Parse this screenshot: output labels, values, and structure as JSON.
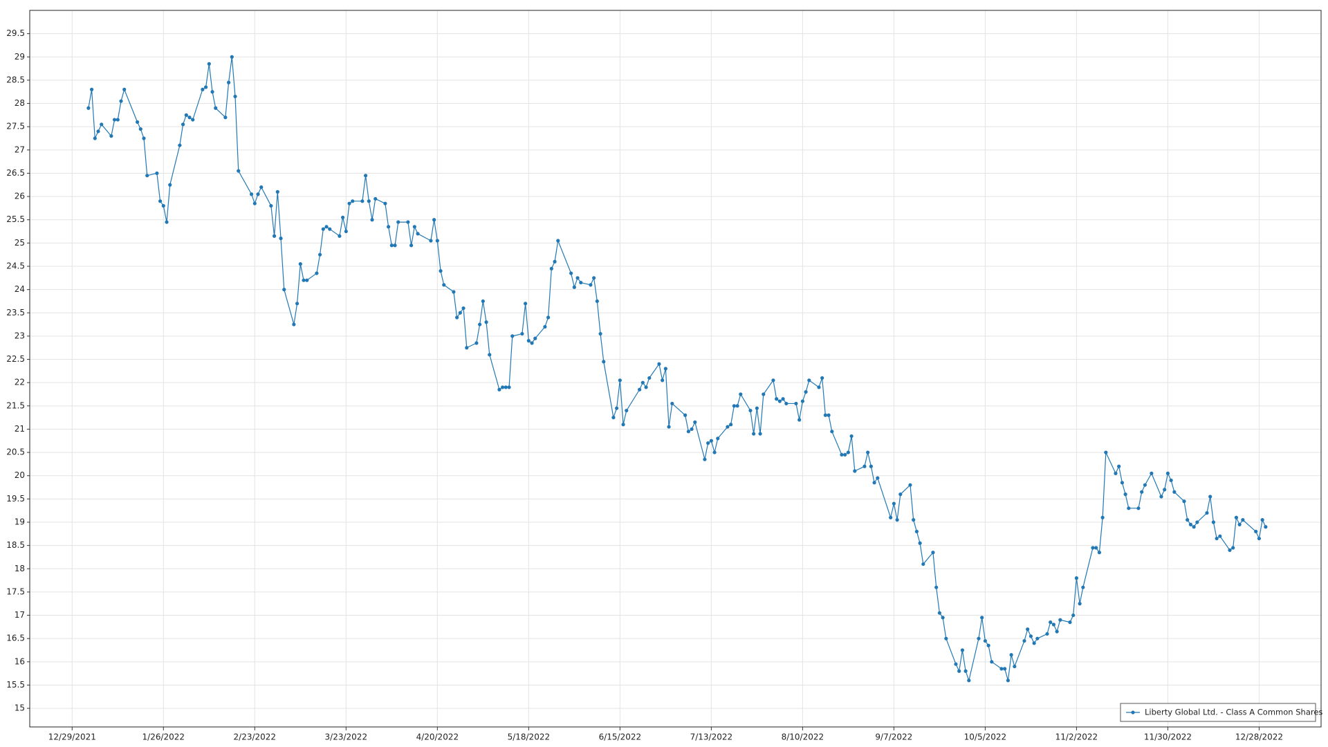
{
  "chart_data": {
    "type": "line",
    "x": [
      "1/3/2022",
      "1/4/2022",
      "1/5/2022",
      "1/6/2022",
      "1/7/2022",
      "1/10/2022",
      "1/11/2022",
      "1/12/2022",
      "1/13/2022",
      "1/14/2022",
      "1/18/2022",
      "1/19/2022",
      "1/20/2022",
      "1/21/2022",
      "1/24/2022",
      "1/25/2022",
      "1/26/2022",
      "1/27/2022",
      "1/28/2022",
      "1/31/2022",
      "2/1/2022",
      "2/2/2022",
      "2/3/2022",
      "2/4/2022",
      "2/7/2022",
      "2/8/2022",
      "2/9/2022",
      "2/10/2022",
      "2/11/2022",
      "2/14/2022",
      "2/15/2022",
      "2/16/2022",
      "2/17/2022",
      "2/18/2022",
      "2/22/2022",
      "2/23/2022",
      "2/24/2022",
      "2/25/2022",
      "2/28/2022",
      "3/1/2022",
      "3/2/2022",
      "3/3/2022",
      "3/4/2022",
      "3/7/2022",
      "3/8/2022",
      "3/9/2022",
      "3/10/2022",
      "3/11/2022",
      "3/14/2022",
      "3/15/2022",
      "3/16/2022",
      "3/17/2022",
      "3/18/2022",
      "3/21/2022",
      "3/22/2022",
      "3/23/2022",
      "3/24/2022",
      "3/25/2022",
      "3/28/2022",
      "3/29/2022",
      "3/30/2022",
      "3/31/2022",
      "4/1/2022",
      "4/4/2022",
      "4/5/2022",
      "4/6/2022",
      "4/7/2022",
      "4/8/2022",
      "4/11/2022",
      "4/12/2022",
      "4/13/2022",
      "4/14/2022",
      "4/18/2022",
      "4/19/2022",
      "4/20/2022",
      "4/21/2022",
      "4/22/2022",
      "4/25/2022",
      "4/26/2022",
      "4/27/2022",
      "4/28/2022",
      "4/29/2022",
      "5/2/2022",
      "5/3/2022",
      "5/4/2022",
      "5/5/2022",
      "5/6/2022",
      "5/9/2022",
      "5/10/2022",
      "5/11/2022",
      "5/12/2022",
      "5/13/2022",
      "5/16/2022",
      "5/17/2022",
      "5/18/2022",
      "5/19/2022",
      "5/20/2022",
      "5/23/2022",
      "5/24/2022",
      "5/25/2022",
      "5/26/2022",
      "5/27/2022",
      "5/31/2022",
      "6/1/2022",
      "6/2/2022",
      "6/3/2022",
      "6/6/2022",
      "6/7/2022",
      "6/8/2022",
      "6/9/2022",
      "6/10/2022",
      "6/13/2022",
      "6/14/2022",
      "6/15/2022",
      "6/16/2022",
      "6/17/2022",
      "6/21/2022",
      "6/22/2022",
      "6/23/2022",
      "6/24/2022",
      "6/27/2022",
      "6/28/2022",
      "6/29/2022",
      "6/30/2022",
      "7/1/2022",
      "7/5/2022",
      "7/6/2022",
      "7/7/2022",
      "7/8/2022",
      "7/11/2022",
      "7/12/2022",
      "7/13/2022",
      "7/14/2022",
      "7/15/2022",
      "7/18/2022",
      "7/19/2022",
      "7/20/2022",
      "7/21/2022",
      "7/22/2022",
      "7/25/2022",
      "7/26/2022",
      "7/27/2022",
      "7/28/2022",
      "7/29/2022",
      "8/1/2022",
      "8/2/2022",
      "8/3/2022",
      "8/4/2022",
      "8/5/2022",
      "8/8/2022",
      "8/9/2022",
      "8/10/2022",
      "8/11/2022",
      "8/12/2022",
      "8/15/2022",
      "8/16/2022",
      "8/17/2022",
      "8/18/2022",
      "8/19/2022",
      "8/22/2022",
      "8/23/2022",
      "8/24/2022",
      "8/25/2022",
      "8/26/2022",
      "8/29/2022",
      "8/30/2022",
      "8/31/2022",
      "9/1/2022",
      "9/2/2022",
      "9/6/2022",
      "9/7/2022",
      "9/8/2022",
      "9/9/2022",
      "9/12/2022",
      "9/13/2022",
      "9/14/2022",
      "9/15/2022",
      "9/16/2022",
      "9/19/2022",
      "9/20/2022",
      "9/21/2022",
      "9/22/2022",
      "9/23/2022",
      "9/26/2022",
      "9/27/2022",
      "9/28/2022",
      "9/29/2022",
      "9/30/2022",
      "10/3/2022",
      "10/4/2022",
      "10/5/2022",
      "10/6/2022",
      "10/7/2022",
      "10/10/2022",
      "10/11/2022",
      "10/12/2022",
      "10/13/2022",
      "10/14/2022",
      "10/17/2022",
      "10/18/2022",
      "10/19/2022",
      "10/20/2022",
      "10/21/2022",
      "10/24/2022",
      "10/25/2022",
      "10/26/2022",
      "10/27/2022",
      "10/28/2022",
      "10/31/2022",
      "11/1/2022",
      "11/2/2022",
      "11/3/2022",
      "11/4/2022",
      "11/7/2022",
      "11/8/2022",
      "11/9/2022",
      "11/10/2022",
      "11/11/2022",
      "11/14/2022",
      "11/15/2022",
      "11/16/2022",
      "11/17/2022",
      "11/18/2022",
      "11/21/2022",
      "11/22/2022",
      "11/23/2022",
      "11/25/2022",
      "11/28/2022",
      "11/29/2022",
      "11/30/2022",
      "12/1/2022",
      "12/2/2022",
      "12/5/2022",
      "12/6/2022",
      "12/7/2022",
      "12/8/2022",
      "12/9/2022",
      "12/12/2022",
      "12/13/2022",
      "12/14/2022",
      "12/15/2022",
      "12/16/2022",
      "12/19/2022",
      "12/20/2022",
      "12/21/2022",
      "12/22/2022",
      "12/23/2022",
      "12/27/2022",
      "12/28/2022",
      "12/29/2022",
      "12/30/2022"
    ],
    "series": [
      {
        "name": "Liberty Global Ltd. - Class A Common Shares",
        "color": "#2178b4",
        "values": [
          27.9,
          28.3,
          27.25,
          27.4,
          27.55,
          27.3,
          27.65,
          27.65,
          28.05,
          28.3,
          27.6,
          27.45,
          27.25,
          26.45,
          26.5,
          25.9,
          25.8,
          25.45,
          26.25,
          27.1,
          27.55,
          27.75,
          27.7,
          27.65,
          28.3,
          28.35,
          28.85,
          28.25,
          27.9,
          27.7,
          28.45,
          29.0,
          28.15,
          26.55,
          26.05,
          25.85,
          26.05,
          26.2,
          25.8,
          25.15,
          26.1,
          25.1,
          24.0,
          23.25,
          23.7,
          24.55,
          24.2,
          24.2,
          24.35,
          24.75,
          25.3,
          25.35,
          25.3,
          25.15,
          25.55,
          25.25,
          25.85,
          25.9,
          25.9,
          26.45,
          25.9,
          25.5,
          25.95,
          25.85,
          25.35,
          24.95,
          24.95,
          25.45,
          25.45,
          24.95,
          25.35,
          25.2,
          25.05,
          25.5,
          25.05,
          24.4,
          24.1,
          23.95,
          23.4,
          23.5,
          23.6,
          22.75,
          22.85,
          23.25,
          23.75,
          23.3,
          22.6,
          21.85,
          21.9,
          21.9,
          21.9,
          23.0,
          23.05,
          23.7,
          22.9,
          22.85,
          22.95,
          23.2,
          23.4,
          24.45,
          24.6,
          25.05,
          24.35,
          24.05,
          24.25,
          24.15,
          24.1,
          24.25,
          23.75,
          23.05,
          22.45,
          21.25,
          21.45,
          22.05,
          21.1,
          21.4,
          21.85,
          22.0,
          21.9,
          22.1,
          22.4,
          22.05,
          22.3,
          21.05,
          21.55,
          21.3,
          20.95,
          21.0,
          21.15,
          20.35,
          20.7,
          20.75,
          20.5,
          20.8,
          21.05,
          21.1,
          21.5,
          21.5,
          21.75,
          21.4,
          20.9,
          21.45,
          20.9,
          21.75,
          22.05,
          21.65,
          21.6,
          21.65,
          21.55,
          21.55,
          21.2,
          21.6,
          21.8,
          22.05,
          21.9,
          22.1,
          21.3,
          21.3,
          20.95,
          20.45,
          20.45,
          20.5,
          20.85,
          20.1,
          20.2,
          20.5,
          20.2,
          19.85,
          19.95,
          19.1,
          19.4,
          19.05,
          19.6,
          19.8,
          19.05,
          18.8,
          18.55,
          18.1,
          18.35,
          17.6,
          17.05,
          16.95,
          16.5,
          15.95,
          15.8,
          16.25,
          15.8,
          15.6,
          16.5,
          16.95,
          16.45,
          16.35,
          16.0,
          15.85,
          15.85,
          15.6,
          16.15,
          15.9,
          16.45,
          16.7,
          16.55,
          16.4,
          16.5,
          16.6,
          16.85,
          16.8,
          16.65,
          16.9,
          16.85,
          17.0,
          17.8,
          17.25,
          17.6,
          18.45,
          18.45,
          18.35,
          19.1,
          20.5,
          20.05,
          20.2,
          19.85,
          19.6,
          19.3,
          19.3,
          19.65,
          19.8,
          20.05,
          19.55,
          19.7,
          20.05,
          19.9,
          19.65,
          19.45,
          19.05,
          18.95,
          18.9,
          19.0,
          19.2,
          19.55,
          19.0,
          18.65,
          18.7,
          18.4,
          18.45,
          19.1,
          18.95,
          19.05,
          18.8,
          18.65,
          19.05,
          18.9
        ]
      }
    ],
    "xlim": [
      "12/16/2021",
      "1/16/2023"
    ],
    "xticks": [
      "12/29/2021",
      "1/26/2022",
      "2/23/2022",
      "3/23/2022",
      "4/20/2022",
      "5/18/2022",
      "6/15/2022",
      "7/13/2022",
      "8/10/2022",
      "9/7/2022",
      "10/5/2022",
      "11/2/2022",
      "11/30/2022",
      "12/28/2022"
    ],
    "ylim": [
      14.6,
      30.0
    ],
    "yticks": [
      15,
      15.5,
      16,
      16.5,
      17,
      17.5,
      18,
      18.5,
      19,
      19.5,
      20,
      20.5,
      21,
      21.5,
      22,
      22.5,
      23,
      23.5,
      24,
      24.5,
      25,
      25.5,
      26,
      26.5,
      27,
      27.5,
      28,
      28.5,
      29,
      29.5
    ],
    "grid": true,
    "legend": "lower right"
  }
}
